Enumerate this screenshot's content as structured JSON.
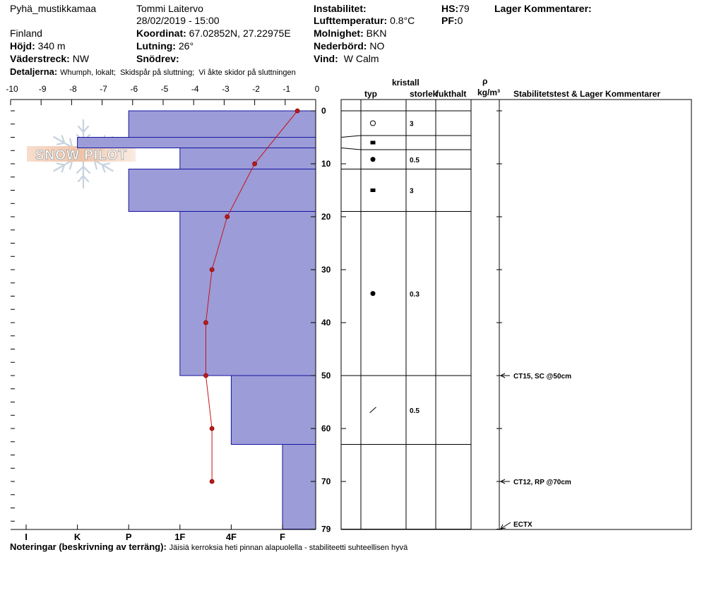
{
  "header": {
    "location": "Pyhä_mustikkamaa",
    "observer": "Tommi Laitervo",
    "datetime": "28/02/2019 - 15:00",
    "country": "Finland",
    "coordinates": {
      "label": "Koordinat:",
      "value": "67.02852N, 27.22975E"
    },
    "elevation": {
      "label": "Höjd:",
      "value": "340 m"
    },
    "slope": {
      "label": "Lutning:",
      "value": "26°"
    },
    "aspect": {
      "label": "Väderstreck:",
      "value": "NW"
    },
    "wind_loading": {
      "label": "Snödrev:"
    },
    "details": {
      "label": "Detaljerna:",
      "value": "Whumph, lokalt;  Skidspår på sluttning;  Vi åkte skidor på sluttningen"
    },
    "instability": {
      "label": "Instabilitet:"
    },
    "air_temperature": {
      "label": "Lufttemperatur:",
      "value": "0.8°C"
    },
    "sky": {
      "label": "Molnighet:",
      "value": "BKN"
    },
    "precipitation": {
      "label": "Nederbörd:",
      "value": "NO"
    },
    "wind": {
      "label": "Vind:",
      "value": "W Calm"
    },
    "hs": {
      "label": "HS:",
      "value": "79"
    },
    "pf": {
      "label": "PF:",
      "value": "0"
    },
    "layer_comments": {
      "label": "Lager Kommentarer:"
    }
  },
  "strata_headers": {
    "crystal": "kristall",
    "type": "typ",
    "size": "storlek",
    "moisture": "fukthalt",
    "density_symbol": "ρ",
    "density_unit": "kg/m³",
    "comments": "Stabilitetstest & Lager Kommentarer"
  },
  "watermark": {
    "text": "SNOW PILOT"
  },
  "notes": {
    "label": "Noteringar (beskrivning av terräng):",
    "value": "Jäisiä kerroksia heti pinnan alapuolella - stabiliteetti suhteellisen hyvä"
  },
  "colors": {
    "hardness_fill": "#9c9cd8",
    "hardness_stroke": "#1414a0",
    "temperature_line": "#c41414",
    "temperature_point": "#b81c1c",
    "logo_flake": "#c3d0dc"
  },
  "chart_data": {
    "type": "bar",
    "orientation": "horizontal",
    "temperature_axis": {
      "ticks": [
        "-10",
        "-9",
        "-8",
        "-7",
        "-6",
        "-5",
        "-4",
        "-3",
        "-2",
        "-1",
        "0"
      ],
      "range": [
        -10,
        0
      ],
      "position": "top"
    },
    "depth_axis": {
      "ticks": [
        "0",
        "10",
        "20",
        "30",
        "40",
        "50",
        "60",
        "70",
        "79"
      ],
      "range": [
        0,
        79
      ]
    },
    "hardness_axis": {
      "ticks": [
        "I",
        "K",
        "P",
        "1F",
        "4F",
        "F"
      ],
      "position": "bottom"
    },
    "layers": [
      {
        "top": 0,
        "bottom": 5,
        "hardness": "P",
        "grain_icon": "open-circle-icon",
        "size": "3"
      },
      {
        "top": 5,
        "bottom": 7,
        "hardness": "K",
        "grain_icon": "filled-square-icon"
      },
      {
        "top": 7,
        "bottom": 11,
        "hardness": "1F",
        "grain_icon": "filled-circle-icon",
        "size": "0.5"
      },
      {
        "top": 11,
        "bottom": 19,
        "hardness": "P",
        "grain_icon": "filled-square-icon",
        "size": "3"
      },
      {
        "top": 19,
        "bottom": 50,
        "hardness": "1F",
        "grain_icon": "filled-circle-icon",
        "size": "0.3"
      },
      {
        "top": 50,
        "bottom": 63,
        "hardness": "4F",
        "grain_icon": "slash-icon",
        "size": "0.5"
      },
      {
        "top": 63,
        "bottom": 79,
        "hardness": "F"
      }
    ],
    "temperature_profile": [
      {
        "depth": 0,
        "temp": -0.6
      },
      {
        "depth": 10,
        "temp": -2.0
      },
      {
        "depth": 20,
        "temp": -2.9
      },
      {
        "depth": 30,
        "temp": -3.4
      },
      {
        "depth": 40,
        "temp": -3.6
      },
      {
        "depth": 50,
        "temp": -3.6
      },
      {
        "depth": 60,
        "temp": -3.4
      },
      {
        "depth": 70,
        "temp": -3.4
      }
    ],
    "stability_tests": [
      {
        "depth": 50,
        "text": "CT15, SC @50cm"
      },
      {
        "depth": 70,
        "text": "CT12, RP @70cm"
      },
      {
        "text": "ECTX"
      }
    ]
  }
}
